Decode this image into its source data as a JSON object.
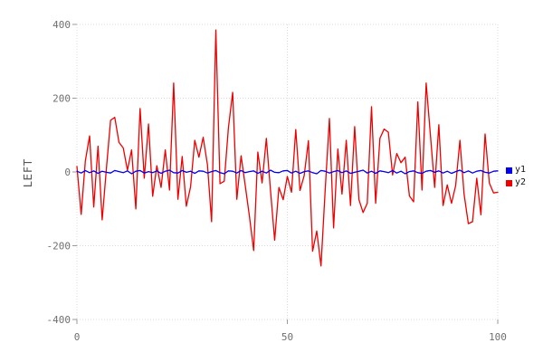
{
  "chart_data": {
    "type": "line",
    "title": "",
    "xlabel": "",
    "ylabel": "LEFT",
    "xlim": [
      0,
      100
    ],
    "ylim": [
      -400,
      400
    ],
    "xticks": [
      0,
      50,
      100
    ],
    "yticks": [
      400,
      200,
      0,
      -200,
      -400
    ],
    "grid": "dotted",
    "legend_position": "right-middle",
    "x_start": 0,
    "x_step": 1,
    "series": [
      {
        "name": "y1",
        "color": "#0000ee",
        "values": [
          2,
          -3,
          4,
          -2,
          3,
          -4,
          2,
          -1,
          -3,
          4,
          1,
          -2,
          3,
          -5,
          2,
          4,
          -3,
          1,
          -2,
          3,
          -4,
          2,
          5,
          -2,
          -3,
          4,
          -1,
          2,
          -4,
          3,
          2,
          -3,
          1,
          4,
          -2,
          -5,
          3,
          2,
          -3,
          4,
          -2,
          1,
          3,
          -4,
          2,
          -3,
          5,
          -1,
          -2,
          3,
          4,
          -3,
          2,
          -4,
          1,
          3,
          -2,
          -5,
          4,
          2,
          -3,
          1,
          4,
          -2,
          3,
          -4,
          -1,
          2,
          5,
          -3,
          2,
          -4,
          3,
          1,
          -2,
          4,
          -3,
          2,
          -5,
          1,
          3,
          -2,
          -4,
          2,
          4,
          -1,
          3,
          -3,
          2,
          -4,
          1,
          5,
          -2,
          3,
          -3,
          2,
          4,
          -1,
          -3,
          2,
          3
        ]
      },
      {
        "name": "y2",
        "color": "#ee0000",
        "values": [
          15,
          -115,
          30,
          98,
          -95,
          70,
          -130,
          10,
          140,
          148,
          80,
          65,
          5,
          60,
          -100,
          172,
          -17,
          130,
          -66,
          17,
          -42,
          60,
          -49,
          241,
          -74,
          42,
          -93,
          -40,
          86,
          40,
          94,
          20,
          -135,
          385,
          -32,
          -25,
          120,
          216,
          -74,
          44,
          -37,
          -120,
          -213,
          54,
          -30,
          91,
          -50,
          -185,
          -42,
          -75,
          -12,
          -55,
          115,
          -50,
          -10,
          85,
          -215,
          -160,
          -255,
          -50,
          145,
          -152,
          62,
          -60,
          86,
          -91,
          123,
          -75,
          -110,
          -85,
          177,
          -85,
          91,
          116,
          108,
          -8,
          50,
          25,
          40,
          -65,
          -81,
          190,
          -49,
          241,
          100,
          -42,
          128,
          -91,
          -35,
          -85,
          -37,
          86,
          -60,
          -140,
          -135,
          -17,
          -116,
          103,
          -30,
          -57,
          -55
        ]
      }
    ]
  },
  "colors": {
    "grid": "#d9d9e3",
    "tick_text": "#6f6f6f",
    "axis_title": "#555555",
    "legend_text": "#111111",
    "background": "#ffffff"
  }
}
